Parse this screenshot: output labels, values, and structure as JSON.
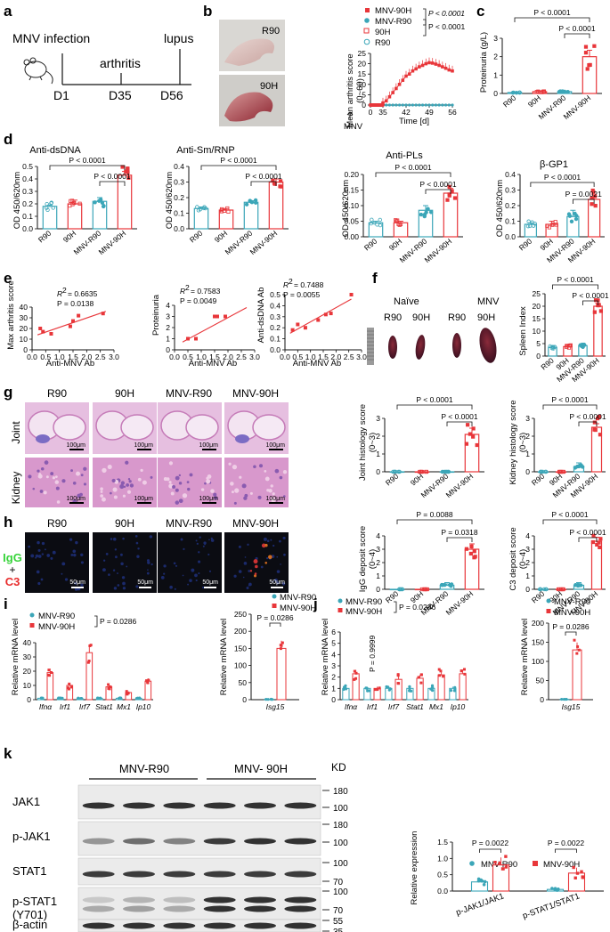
{
  "colors": {
    "red": "#e8363a",
    "teal": "#3ba6b8",
    "he_pink": "#d98bc7",
    "if_black": "#0b0c12"
  },
  "panel_letters": [
    "a",
    "b",
    "c",
    "d",
    "e",
    "f",
    "g",
    "h",
    "i",
    "j",
    "k"
  ],
  "panel_a": {
    "title": "MNV infection",
    "arthritis": "arthritis",
    "lupus": "lupus",
    "d1": "D1",
    "d35": "D35",
    "d56": "D56"
  },
  "panel_b": {
    "photo_labels": [
      "R90",
      "90H"
    ],
    "legend": [
      "MNV-90H",
      "MNV-R90",
      "90H",
      "R90"
    ],
    "pvals": [
      "P < 0.0001",
      "P < 0.0001"
    ],
    "ylabel": "Mean arthritis score",
    "yunit": "(0~60)",
    "xlabel": "Time [d]",
    "mnv": "MNV",
    "yticks": [
      "0",
      "5",
      "10",
      "15",
      "20",
      "25"
    ],
    "xticks": [
      "0",
      "35",
      "42",
      "49",
      "56"
    ]
  },
  "groups": [
    "R90",
    "90H",
    "MNV-R90",
    "MNV-90H"
  ],
  "groups_k": [
    "MNV-R90",
    "MNV-90H"
  ],
  "panel_c": {
    "ylabel": "Proteinuria (g/L)",
    "pvals": [
      "P < 0.0001",
      "P < 0.0001"
    ],
    "yticks": [
      "0",
      "1",
      "2",
      "3"
    ]
  },
  "panel_d": [
    {
      "title": "Anti-dsDNA",
      "ylabel": "OD 450/620nm",
      "pvals": [
        "P < 0.0001",
        "P < 0.0001"
      ],
      "yticks": [
        "0.0",
        "0.1",
        "0.2",
        "0.3",
        "0.4",
        "0.5"
      ]
    },
    {
      "title": "Anti-Sm/RNP",
      "ylabel": "OD 450/620nm",
      "pvals": [
        "P < 0.0001",
        "P < 0.0001"
      ],
      "yticks": [
        "0.0",
        "0.1",
        "0.2",
        "0.3",
        "0.4"
      ]
    },
    {
      "title": "Anti-PLs",
      "ylabel": "OD 450/620nm",
      "pvals": [
        "P < 0.0001",
        "P < 0.0001"
      ],
      "yticks": [
        "0.00",
        "0.05",
        "0.10",
        "0.15",
        "0.20"
      ]
    },
    {
      "title": "β-GP1",
      "ylabel": "OD 450/620nm",
      "pvals": [
        "P < 0.0001",
        "P = 0.0021"
      ],
      "yticks": [
        "0.0",
        "0.1",
        "0.2",
        "0.3",
        "0.4"
      ]
    }
  ],
  "panel_e": [
    {
      "ylabel": "Max arthritis score",
      "xlabel": "Anti-MNV Ab",
      "r2": "R",
      "r2val": "= 0.6635",
      "p": "P = 0.0138",
      "yticks": [
        "0",
        "10",
        "20",
        "30",
        "40"
      ],
      "xticks": [
        "0.0",
        "0.5",
        "1.0",
        "1.5",
        "2.0",
        "2.5",
        "3.0"
      ]
    },
    {
      "ylabel": "Proteinuria",
      "xlabel": "Anti-MNV Ab",
      "r2": "R",
      "r2val": "= 0.7583",
      "p": "P = 0.0049",
      "yticks": [
        "0",
        "1",
        "2",
        "3",
        "4"
      ],
      "xticks": [
        "0.0",
        "0.5",
        "1.0",
        "1.5",
        "2.0",
        "2.5",
        "3.0"
      ]
    },
    {
      "ylabel": "Anti-dsDNA Ab",
      "xlabel": "Anti-MNV Ab",
      "r2": "R",
      "r2val": "= 0.7488",
      "p": "P = 0.0055",
      "yticks": [
        "0.0",
        "0.1",
        "0.2",
        "0.3",
        "0.4",
        "0.5"
      ],
      "xticks": [
        "0.0",
        "0.5",
        "1.0",
        "1.5",
        "2.0",
        "2.5",
        "3.0"
      ]
    }
  ],
  "panel_f": {
    "naive": "Naïve",
    "mnv": "MNV",
    "labels": [
      "R90",
      "90H",
      "R90",
      "90H"
    ],
    "ylabel": "Spleen Index",
    "pvals": [
      "P < 0.0001",
      "P < 0.0001"
    ],
    "yticks": [
      "0",
      "5",
      "10",
      "15",
      "20",
      "25"
    ]
  },
  "panel_g": {
    "col_labels": [
      "R90",
      "90H",
      "MNV-R90",
      "MNV-90H"
    ],
    "row_labels": [
      "Joint",
      "Kidney"
    ],
    "scale": "100μm",
    "joint": {
      "ylabel": "Joint histology score",
      "yunit": "(0~3)",
      "pvals": [
        "P < 0.0001",
        "P < 0.0001"
      ],
      "yticks": [
        "0",
        "1",
        "2",
        "3"
      ]
    },
    "kidney": {
      "ylabel": "Kidney histology score",
      "yunit": "(0~3)",
      "pvals": [
        "P < 0.0001",
        "P < 0.0001"
      ],
      "yticks": [
        "0",
        "1",
        "2",
        "3"
      ]
    }
  },
  "panel_h": {
    "col_labels": [
      "R90",
      "90H",
      "MNV-R90",
      "MNV-90H"
    ],
    "row_igg": "IgG",
    "plus": "+",
    "row_c3": "C3",
    "scale": "50μm",
    "igg": {
      "ylabel": "IgG deposit score",
      "yunit": "(0~4)",
      "pvals": [
        "P = 0.0088",
        "P = 0.0318"
      ],
      "yticks": [
        "0",
        "1",
        "2",
        "3",
        "4"
      ]
    },
    "c3": {
      "ylabel": "C3 deposit score",
      "yunit": "(0~4)",
      "pvals": [
        "P < 0.0001",
        "P < 0.0001"
      ],
      "yticks": [
        "0",
        "1",
        "2",
        "3",
        "4"
      ]
    }
  },
  "panel_i": {
    "legend": [
      "MNV-R90",
      "MNV-90H"
    ],
    "pval": "P = 0.0286",
    "ylabel": "Relative mRNA level",
    "genes": [
      "Ifnα",
      "Irf1",
      "Irf7",
      "Stat1",
      "Mx1",
      "Ip10"
    ],
    "yticks": [
      "0",
      "10",
      "20",
      "30",
      "40"
    ],
    "isg": {
      "legend": [
        "MNV-R90",
        "MNV-90H"
      ],
      "pval": "P = 0.0286",
      "ylabel": "Relative mRNA level",
      "gene": "Isg15",
      "yticks": [
        "0",
        "50",
        "100",
        "150",
        "200",
        "250"
      ]
    }
  },
  "panel_j": {
    "legend": [
      "MNV-R90",
      "MNV-90H"
    ],
    "pval": "P = 0.0286",
    "vert_p": "P = 0.9999",
    "ylabel": "Relative mRNA level",
    "genes": [
      "Ifnα",
      "Irf1",
      "Irf7",
      "Stat1",
      "Mx1",
      "Ip10"
    ],
    "yticks": [
      "0",
      "1",
      "2",
      "3",
      "4",
      "5",
      "6"
    ],
    "isg": {
      "legend": [
        "MNV-R90",
        "MNV-90H"
      ],
      "pval": "P = 0.0286",
      "ylabel": "Relative mRNA level",
      "gene": "Isg15",
      "yticks": [
        "0",
        "50",
        "100",
        "150",
        "200"
      ]
    }
  },
  "panel_k": {
    "grp1": "MNV-R90",
    "grp2": "MNV- 90H",
    "kd": "KD",
    "rows": [
      "JAK1",
      "p-JAK1",
      "STAT1",
      "p-STAT1",
      "(Y701)",
      "β-actin"
    ],
    "markers": [
      "180",
      "100",
      "180",
      "100",
      "100",
      "70",
      "100",
      "70",
      "55",
      "35"
    ],
    "legend": [
      "MNV-R90",
      "MNV-90H"
    ],
    "pvals": [
      "P = 0.0022",
      "P = 0.0022"
    ],
    "ylabel": "Relative expression",
    "xcats": [
      "p-JAK1/JAK1",
      "p-STAT1/STAT1"
    ],
    "yticks": [
      "0.0",
      "0.5",
      "1.0",
      "1.5"
    ]
  },
  "chart_data": [
    {
      "type": "line",
      "panel": "b",
      "xlabel": "Time [d]",
      "ylabel": "Mean arthritis score (0~60)",
      "ylim": [
        0,
        25
      ],
      "x": [
        0,
        2,
        4,
        6,
        8,
        10,
        12,
        14,
        16,
        18,
        20,
        22,
        24,
        26,
        28,
        30,
        32,
        34,
        35,
        36,
        37,
        38,
        39,
        40,
        41,
        42,
        43,
        44,
        45,
        46,
        47,
        48,
        49,
        50,
        51,
        52,
        53,
        54,
        55,
        56
      ],
      "series": [
        {
          "name": "MNV-90H",
          "values": [
            0,
            0,
            0,
            0,
            0,
            0,
            0,
            0,
            0,
            0,
            0,
            0,
            0,
            0,
            0,
            0,
            0,
            0,
            1,
            2,
            4,
            6,
            8,
            10,
            12,
            14,
            15,
            16.5,
            17.5,
            18.5,
            19.2,
            20,
            20.5,
            20.3,
            19.8,
            19.2,
            18.5,
            17.8,
            17,
            16.5
          ]
        },
        {
          "name": "MNV-R90",
          "values": [
            0,
            0,
            0,
            0,
            0,
            0,
            0,
            0,
            0,
            0,
            0,
            0,
            0,
            0,
            0,
            0,
            0,
            0,
            0,
            0,
            0,
            0,
            0,
            0,
            0,
            0,
            0,
            0,
            0,
            0,
            0,
            0,
            0,
            0,
            0,
            0,
            0,
            0,
            0,
            0
          ]
        },
        {
          "name": "90H",
          "values": [
            0,
            0,
            0,
            0,
            0,
            0,
            0,
            0,
            0,
            0,
            0,
            0,
            0,
            0,
            0,
            0,
            0,
            0,
            0,
            0,
            0,
            0,
            0,
            0,
            0,
            0,
            0,
            0,
            0,
            0,
            0,
            0,
            0,
            0,
            0,
            0,
            0,
            0,
            0,
            0
          ]
        },
        {
          "name": "R90",
          "values": [
            0,
            0,
            0,
            0,
            0,
            0,
            0,
            0,
            0,
            0,
            0,
            0,
            0,
            0,
            0,
            0,
            0,
            0,
            0,
            0,
            0,
            0,
            0,
            0,
            0,
            0,
            0,
            0,
            0,
            0,
            0,
            0,
            0,
            0,
            0,
            0,
            0,
            0,
            0,
            0
          ]
        }
      ]
    },
    {
      "type": "bar",
      "panel": "c",
      "categories": [
        "R90",
        "90H",
        "MNV-R90",
        "MNV-90H"
      ],
      "values": [
        0.05,
        0.1,
        0.1,
        2.0
      ],
      "ylabel": "Proteinuria (g/L)",
      "ylim": [
        0,
        3
      ]
    },
    {
      "type": "bar",
      "panel": "d1",
      "title": "Anti-dsDNA",
      "categories": [
        "R90",
        "90H",
        "MNV-R90",
        "MNV-90H"
      ],
      "values": [
        0.18,
        0.2,
        0.22,
        0.43
      ],
      "ylim": [
        0,
        0.5
      ]
    },
    {
      "type": "bar",
      "panel": "d2",
      "title": "Anti-Sm/RNP",
      "categories": [
        "R90",
        "90H",
        "MNV-R90",
        "MNV-90H"
      ],
      "values": [
        0.13,
        0.12,
        0.17,
        0.3
      ],
      "ylim": [
        0,
        0.4
      ]
    },
    {
      "type": "bar",
      "panel": "d3",
      "title": "Anti-PLs",
      "categories": [
        "R90",
        "90H",
        "MNV-R90",
        "MNV-90H"
      ],
      "values": [
        0.045,
        0.045,
        0.085,
        0.14
      ],
      "ylim": [
        0,
        0.2
      ]
    },
    {
      "type": "bar",
      "panel": "d4",
      "title": "β-GP1",
      "categories": [
        "R90",
        "90H",
        "MNV-R90",
        "MNV-90H"
      ],
      "values": [
        0.08,
        0.08,
        0.13,
        0.24
      ],
      "ylim": [
        0,
        0.4
      ]
    },
    {
      "type": "scatter",
      "panel": "e1",
      "xlabel": "Anti-MNV Ab",
      "ylabel": "Max arthritis score",
      "xlim": [
        0,
        3
      ],
      "ylim": [
        0,
        40
      ],
      "points": [
        [
          0.3,
          20
        ],
        [
          0.4,
          17
        ],
        [
          0.7,
          15
        ],
        [
          1.4,
          22
        ],
        [
          1.5,
          27
        ],
        [
          1.7,
          32
        ],
        [
          2.6,
          34
        ]
      ],
      "fit": [
        [
          0.2,
          14
        ],
        [
          2.7,
          36
        ]
      ]
    },
    {
      "type": "scatter",
      "panel": "e2",
      "xlabel": "Anti-MNV Ab",
      "ylabel": "Proteinuria",
      "xlim": [
        0,
        3
      ],
      "ylim": [
        0,
        4
      ],
      "points": [
        [
          0.5,
          1
        ],
        [
          0.8,
          1
        ],
        [
          1.5,
          3
        ],
        [
          1.6,
          3
        ],
        [
          1.9,
          3
        ],
        [
          0.5,
          1
        ]
      ],
      "fit": [
        [
          0.3,
          0.7
        ],
        [
          2.7,
          3.8
        ]
      ]
    },
    {
      "type": "scatter",
      "panel": "e3",
      "xlabel": "Anti-MNV Ab",
      "ylabel": "Anti-dsDNA Ab",
      "xlim": [
        0,
        3
      ],
      "ylim": [
        0,
        0.5
      ],
      "points": [
        [
          0.3,
          0.18
        ],
        [
          0.5,
          0.23
        ],
        [
          0.8,
          0.2
        ],
        [
          1.3,
          0.27
        ],
        [
          1.6,
          0.32
        ],
        [
          1.8,
          0.33
        ],
        [
          2.6,
          0.5
        ]
      ],
      "fit": [
        [
          0.2,
          0.15
        ],
        [
          2.6,
          0.46
        ]
      ]
    },
    {
      "type": "bar",
      "panel": "f",
      "categories": [
        "R90",
        "90H",
        "MNV-R90",
        "MNV-90H"
      ],
      "values": [
        3.5,
        3.8,
        4.2,
        20
      ],
      "ylabel": "Spleen Index",
      "ylim": [
        0,
        25
      ]
    },
    {
      "type": "bar",
      "panel": "g-joint",
      "categories": [
        "R90",
        "90H",
        "MNV-R90",
        "MNV-90H"
      ],
      "values": [
        0,
        0,
        0,
        2.1
      ],
      "ylim": [
        0,
        3
      ]
    },
    {
      "type": "bar",
      "panel": "g-kidney",
      "categories": [
        "R90",
        "90H",
        "MNV-R90",
        "MNV-90H"
      ],
      "values": [
        0,
        0,
        0.3,
        2.5
      ],
      "ylim": [
        0,
        3
      ]
    },
    {
      "type": "bar",
      "panel": "h-igg",
      "categories": [
        "R90",
        "90H",
        "MNV-R90",
        "MNV-90H"
      ],
      "values": [
        0,
        0,
        0.3,
        3.0
      ],
      "ylim": [
        0,
        4
      ]
    },
    {
      "type": "bar",
      "panel": "h-c3",
      "categories": [
        "R90",
        "90H",
        "MNV-R90",
        "MNV-90H"
      ],
      "values": [
        0,
        0,
        0.3,
        3.6
      ],
      "ylim": [
        0,
        4
      ]
    },
    {
      "type": "bar",
      "panel": "i",
      "categories": [
        "Ifnα",
        "Irf1",
        "Irf7",
        "Stat1",
        "Mx1",
        "Ip10"
      ],
      "ylim": [
        0,
        40
      ],
      "series": [
        {
          "name": "MNV-R90",
          "values": [
            1,
            1,
            1,
            1,
            1,
            1
          ]
        },
        {
          "name": "MNV-90H",
          "values": [
            19,
            10,
            33,
            9,
            5,
            13
          ]
        }
      ]
    },
    {
      "type": "bar",
      "panel": "i-isg15",
      "categories": [
        "Isg15"
      ],
      "ylim": [
        0,
        250
      ],
      "series": [
        {
          "name": "MNV-R90",
          "values": [
            1
          ]
        },
        {
          "name": "MNV-90H",
          "values": [
            150
          ]
        }
      ]
    },
    {
      "type": "bar",
      "panel": "j",
      "categories": [
        "Ifnα",
        "Irf1",
        "Irf7",
        "Stat1",
        "Mx1",
        "Ip10"
      ],
      "ylim": [
        0,
        6
      ],
      "series": [
        {
          "name": "MNV-R90",
          "values": [
            1,
            1,
            1,
            1,
            1,
            1
          ]
        },
        {
          "name": "MNV-90H",
          "values": [
            2.3,
            1.0,
            1.8,
            1.9,
            2.2,
            2.3
          ]
        }
      ]
    },
    {
      "type": "bar",
      "panel": "j-isg15",
      "categories": [
        "Isg15"
      ],
      "ylim": [
        0,
        200
      ],
      "series": [
        {
          "name": "MNV-R90",
          "values": [
            1
          ]
        },
        {
          "name": "MNV-90H",
          "values": [
            130
          ]
        }
      ]
    },
    {
      "type": "bar",
      "panel": "k",
      "categories": [
        "p-JAK1/JAK1",
        "p-STAT1/STAT1"
      ],
      "ylim": [
        0,
        1.5
      ],
      "series": [
        {
          "name": "MNV-R90",
          "values": [
            0.28,
            0.05
          ]
        },
        {
          "name": "MNV-90H",
          "values": [
            0.8,
            0.55
          ]
        }
      ]
    }
  ]
}
